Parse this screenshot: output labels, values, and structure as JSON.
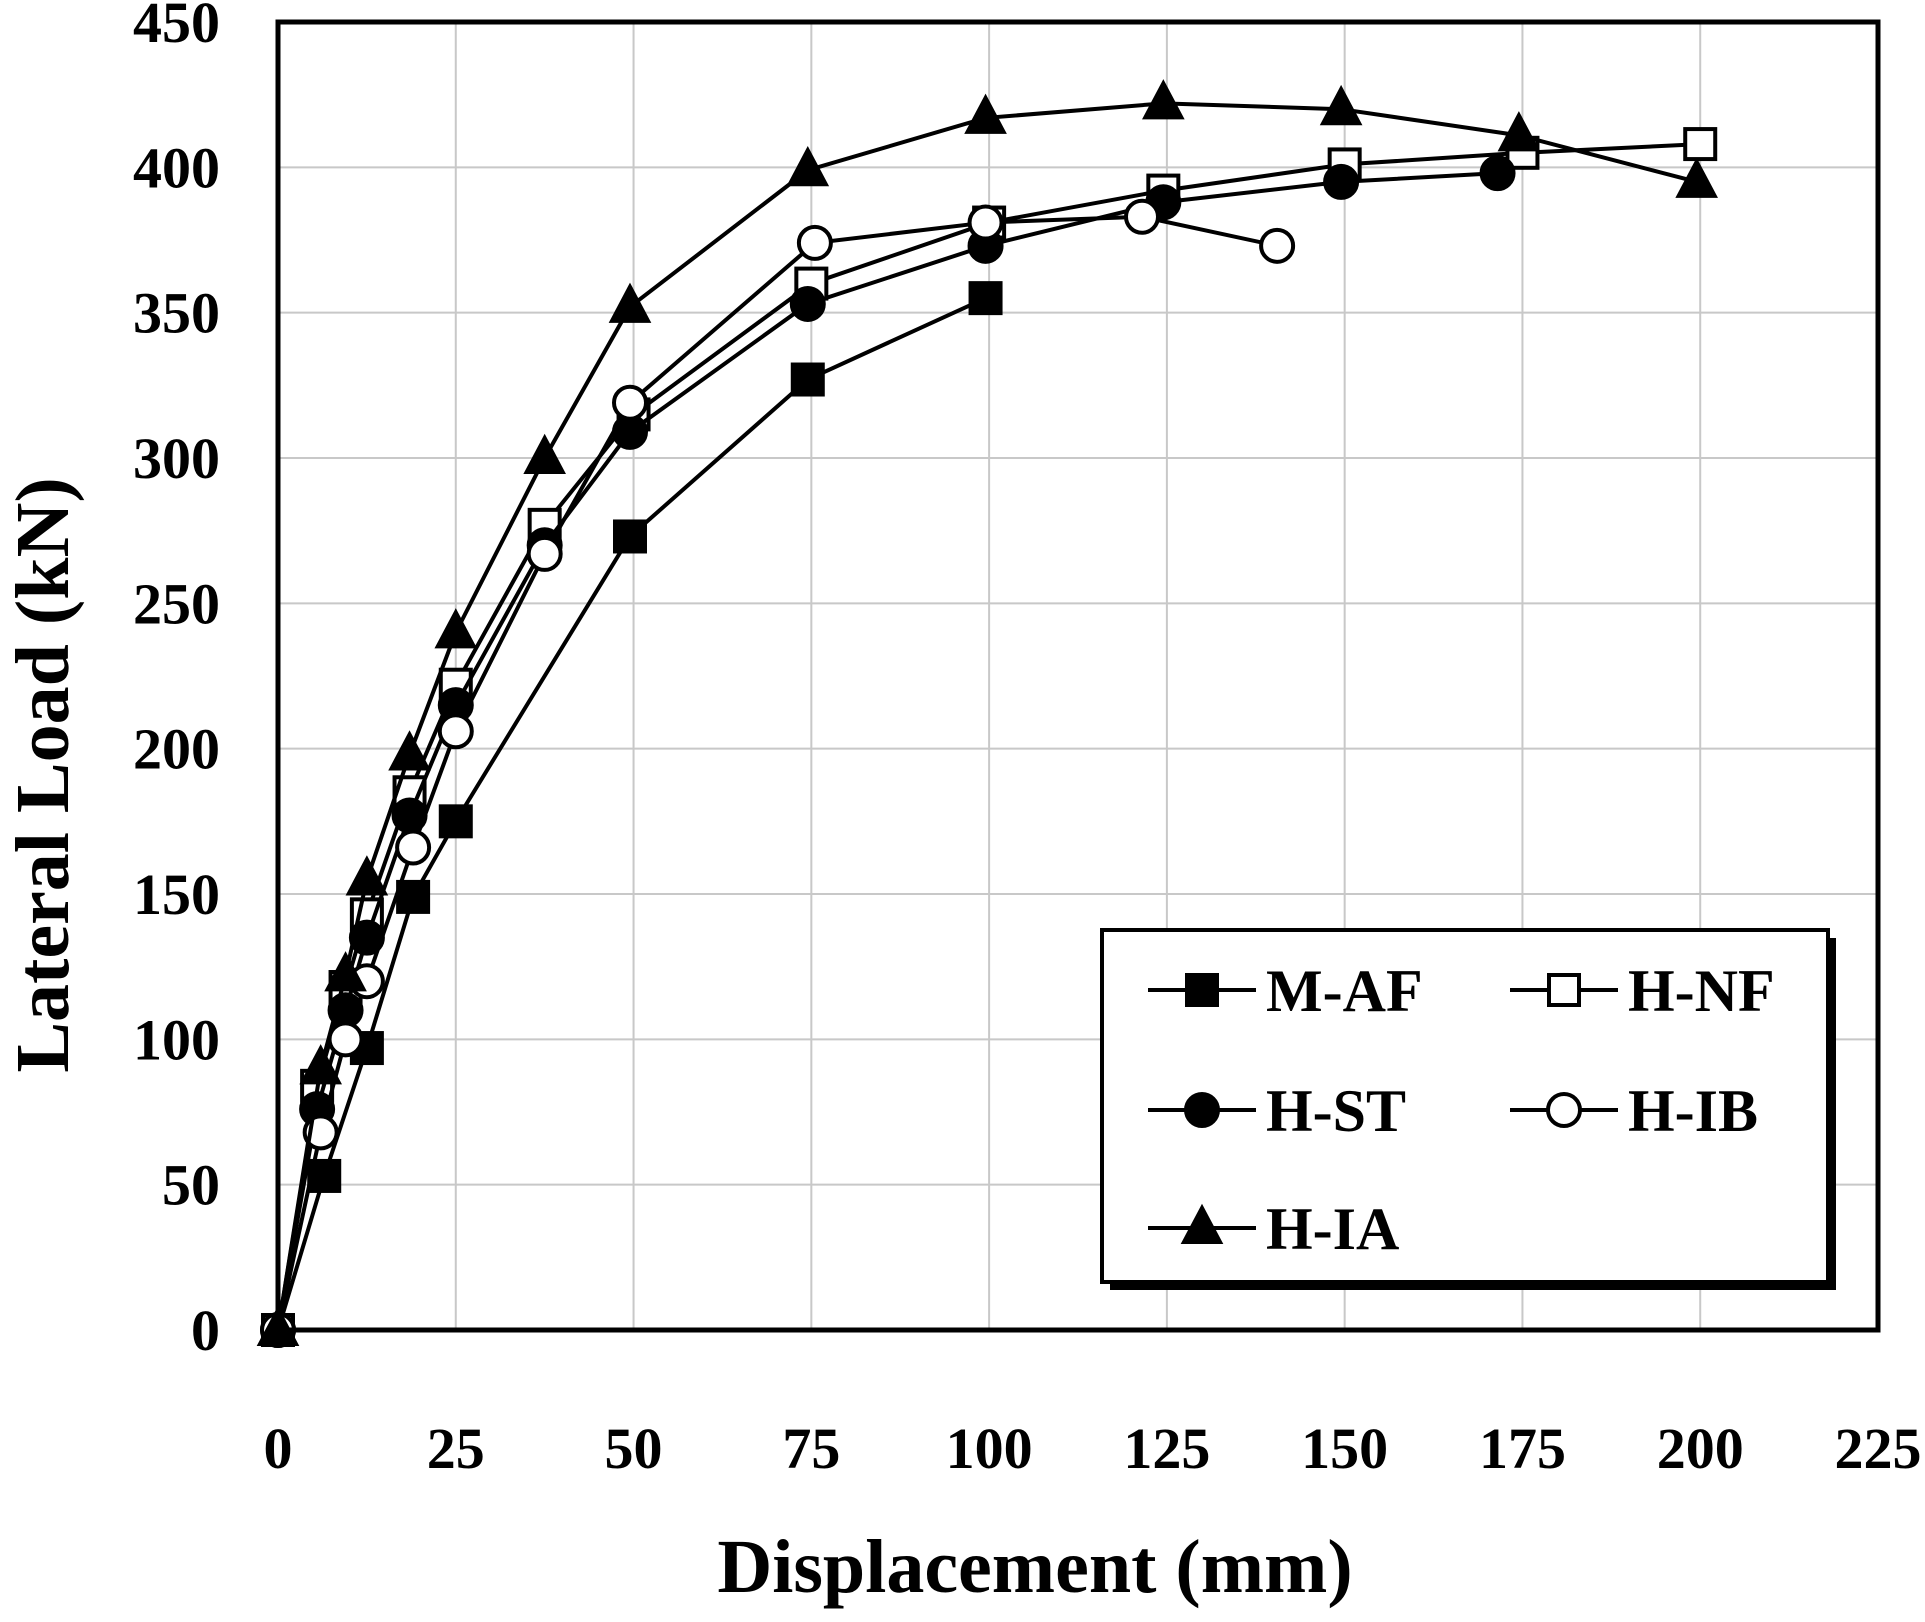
{
  "chart_data": {
    "type": "line",
    "title": "",
    "xlabel": "Displacement (mm)",
    "ylabel": "Lateral Load (kN)",
    "xlim": [
      0,
      225
    ],
    "ylim": [
      0,
      450
    ],
    "xticks": [
      0,
      25,
      50,
      75,
      100,
      125,
      150,
      175,
      200,
      225
    ],
    "yticks": [
      0,
      50,
      100,
      150,
      200,
      250,
      300,
      350,
      400,
      450
    ],
    "xtick_labels": [
      "0",
      "25",
      "50",
      "75",
      "100",
      "125",
      "150",
      "175",
      "200",
      "225"
    ],
    "ytick_labels": [
      "0",
      "50",
      "100",
      "150",
      "200",
      "250",
      "300",
      "350",
      "400",
      "450"
    ],
    "grid": true,
    "legend_position": "bottom-right",
    "series": [
      {
        "name": "M-AF",
        "marker": "square-filled",
        "x": [
          0,
          6.5,
          12.5,
          19,
          25,
          49.5,
          74.5,
          99.5
        ],
        "y": [
          0,
          53,
          97,
          149,
          175,
          273,
          327,
          355
        ]
      },
      {
        "name": "H-NF",
        "marker": "square-open",
        "x": [
          0,
          5.5,
          9.5,
          12.5,
          18.5,
          25,
          37.5,
          50,
          75,
          100,
          124.5,
          150,
          175,
          200
        ],
        "y": [
          0,
          84,
          118,
          143,
          185,
          222,
          277,
          315,
          360,
          381,
          392,
          401,
          405,
          408
        ]
      },
      {
        "name": "H-ST",
        "marker": "circle-filled",
        "x": [
          0,
          5.5,
          9.5,
          12.5,
          18.5,
          25,
          37.5,
          49.5,
          74.5,
          99.5,
          124.5,
          149.5,
          171.5
        ],
        "y": [
          0,
          76,
          110,
          135,
          177,
          215,
          270,
          309,
          353,
          373,
          388,
          395,
          398
        ]
      },
      {
        "name": "H-IB",
        "marker": "circle-open",
        "x": [
          0,
          6,
          9.5,
          12.5,
          19,
          25,
          37.5,
          49.5,
          75.5,
          99.5,
          121.5,
          140.5
        ],
        "y": [
          0,
          68,
          100,
          120,
          166,
          206,
          267,
          319,
          374,
          381,
          383,
          373
        ]
      },
      {
        "name": "H-IA",
        "marker": "triangle-filled",
        "x": [
          0,
          6,
          9.5,
          12.5,
          18.5,
          25,
          37.5,
          49.5,
          74.5,
          99.5,
          124.5,
          149.5,
          174.5,
          199.5
        ],
        "y": [
          0,
          90,
          122,
          155,
          198,
          240,
          300,
          352,
          399,
          417,
          422,
          420,
          411,
          395
        ]
      }
    ]
  }
}
